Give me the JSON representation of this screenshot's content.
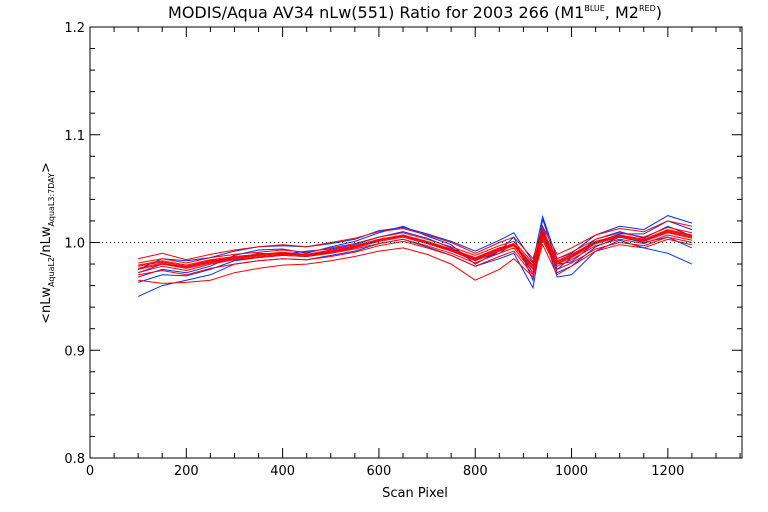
{
  "chart_data": {
    "type": "line",
    "title": {
      "main": "MODIS/Aqua AV34 nLw(551) Ratio for 2003 266 (M1",
      "sup1": "BLUE",
      "mid": ", M2",
      "sup2": "RED",
      "end": ")"
    },
    "xlabel": "Scan Pixel",
    "ylabel": {
      "p1": "<nLw",
      "s1": "AquaL2",
      "p2": "/nLw",
      "s2": "AquaL3:7DAY",
      "p3": ">"
    },
    "xlim": [
      0,
      1354
    ],
    "ylim": [
      0.8,
      1.2
    ],
    "xticks": [
      0,
      200,
      400,
      600,
      800,
      1000,
      1200
    ],
    "xtick_labels": [
      "0",
      "200",
      "400",
      "600",
      "800",
      "1000",
      "1200"
    ],
    "yticks": [
      0.8,
      0.9,
      1.0,
      1.1,
      1.2
    ],
    "ytick_labels": [
      "0.8",
      "0.9",
      "1.0",
      "1.1",
      "1.2"
    ],
    "reference_line": {
      "y": 1.0,
      "style": "dotted"
    },
    "colors": {
      "M1": "#0030ff",
      "M2": "#ff0000"
    },
    "x": [
      100,
      150,
      200,
      250,
      300,
      350,
      400,
      450,
      500,
      550,
      600,
      650,
      700,
      750,
      800,
      850,
      880,
      920,
      940,
      970,
      1000,
      1050,
      1100,
      1150,
      1200,
      1250
    ],
    "series": [
      {
        "group": "M1",
        "values": [
          0.972,
          0.98,
          0.977,
          0.982,
          0.985,
          0.99,
          0.989,
          0.992,
          0.994,
          0.998,
          1.005,
          1.01,
          1.004,
          0.995,
          0.985,
          0.995,
          0.997,
          0.978,
          1.015,
          0.975,
          0.986,
          1.003,
          1.01,
          1.004,
          1.015,
          1.006
        ]
      },
      {
        "group": "M1",
        "values": [
          0.968,
          0.975,
          0.972,
          0.978,
          0.988,
          0.993,
          0.994,
          0.99,
          0.996,
          1.001,
          1.009,
          1.015,
          1.006,
          0.998,
          0.98,
          0.992,
          1.005,
          0.965,
          1.022,
          0.98,
          0.982,
          1.0,
          1.008,
          1.008,
          1.02,
          1.012
        ]
      },
      {
        "group": "M1",
        "values": [
          0.95,
          0.96,
          0.965,
          0.97,
          0.98,
          0.983,
          0.985,
          0.984,
          0.988,
          0.992,
          0.999,
          1.003,
          0.996,
          0.988,
          0.978,
          0.985,
          0.99,
          0.958,
          1.01,
          0.968,
          0.97,
          0.992,
          1.002,
          0.995,
          0.99,
          0.98
        ]
      },
      {
        "group": "M1",
        "values": [
          0.975,
          0.985,
          0.983,
          0.986,
          0.992,
          0.996,
          0.997,
          0.996,
          0.999,
          1.003,
          1.011,
          1.014,
          1.008,
          1.001,
          0.992,
          1.002,
          1.009,
          0.982,
          1.024,
          0.985,
          0.99,
          1.007,
          1.015,
          1.012,
          1.025,
          1.018
        ]
      },
      {
        "group": "M1",
        "values": [
          0.963,
          0.97,
          0.969,
          0.975,
          0.983,
          0.986,
          0.988,
          0.987,
          0.991,
          0.995,
          1.002,
          1.007,
          1.0,
          0.992,
          0.984,
          0.99,
          0.999,
          0.972,
          1.012,
          0.972,
          0.978,
          0.996,
          1.005,
          1.0,
          1.005,
          0.995
        ]
      },
      {
        "group": "M2",
        "values": [
          0.978,
          0.982,
          0.978,
          0.983,
          0.986,
          0.988,
          0.99,
          0.988,
          0.992,
          0.996,
          1.002,
          1.006,
          1.0,
          0.993,
          0.985,
          0.994,
          0.998,
          0.978,
          1.008,
          0.982,
          0.988,
          1.0,
          1.006,
          1.002,
          1.01,
          1.005
        ]
      },
      {
        "group": "M2",
        "values": [
          0.972,
          0.978,
          0.974,
          0.98,
          0.984,
          0.986,
          0.988,
          0.987,
          0.99,
          0.994,
          0.999,
          1.003,
          0.997,
          0.99,
          0.981,
          0.99,
          0.995,
          0.972,
          1.004,
          0.978,
          0.984,
          0.997,
          1.003,
          0.999,
          1.007,
          1.002
        ]
      },
      {
        "group": "M2",
        "values": [
          0.981,
          0.985,
          0.981,
          0.986,
          0.989,
          0.991,
          0.993,
          0.991,
          0.995,
          0.999,
          1.005,
          1.009,
          1.003,
          0.996,
          0.988,
          0.997,
          1.001,
          0.981,
          1.011,
          0.985,
          0.991,
          1.003,
          1.009,
          1.005,
          1.014,
          1.009
        ]
      },
      {
        "group": "M2",
        "values": [
          0.975,
          0.98,
          0.976,
          0.981,
          0.985,
          0.987,
          0.989,
          0.988,
          0.991,
          0.995,
          1.001,
          1.005,
          0.999,
          0.992,
          0.983,
          0.992,
          0.997,
          0.975,
          1.006,
          0.98,
          0.986,
          0.999,
          1.005,
          1.001,
          1.009,
          1.004
        ]
      },
      {
        "group": "M2",
        "values": [
          0.965,
          0.962,
          0.963,
          0.965,
          0.972,
          0.976,
          0.979,
          0.98,
          0.983,
          0.987,
          0.992,
          0.995,
          0.989,
          0.98,
          0.965,
          0.975,
          0.985,
          0.968,
          0.998,
          0.97,
          0.978,
          0.992,
          0.998,
          0.995,
          1.003,
          0.998
        ]
      },
      {
        "group": "M2",
        "values": [
          0.985,
          0.99,
          0.984,
          0.989,
          0.993,
          0.996,
          0.998,
          0.996,
          1.0,
          1.004,
          1.01,
          1.013,
          1.007,
          1.0,
          0.99,
          1.0,
          1.005,
          0.985,
          1.015,
          0.989,
          0.995,
          1.007,
          1.013,
          1.01,
          1.02,
          1.015
        ]
      },
      {
        "group": "M2",
        "values": [
          0.97,
          0.974,
          0.97,
          0.976,
          0.98,
          0.983,
          0.985,
          0.984,
          0.987,
          0.991,
          0.997,
          1.001,
          0.995,
          0.988,
          0.978,
          0.987,
          0.992,
          0.97,
          1.002,
          0.975,
          0.981,
          0.994,
          1.0,
          0.997,
          1.005,
          1.0
        ]
      },
      {
        "group": "M2",
        "values": [
          0.979,
          0.983,
          0.979,
          0.984,
          0.987,
          0.989,
          0.991,
          0.989,
          0.993,
          0.997,
          1.003,
          1.007,
          1.001,
          0.994,
          0.986,
          0.995,
          0.999,
          0.979,
          1.009,
          0.983,
          0.989,
          1.001,
          1.007,
          1.003,
          1.012,
          1.007
        ]
      },
      {
        "group": "M2",
        "values": [
          0.976,
          0.981,
          0.977,
          0.982,
          0.986,
          0.988,
          0.99,
          0.989,
          0.992,
          0.996,
          1.002,
          1.006,
          1.0,
          0.993,
          0.984,
          0.993,
          0.998,
          0.976,
          1.007,
          0.981,
          0.987,
          1.0,
          1.006,
          1.002,
          1.011,
          1.006
        ]
      }
    ]
  }
}
